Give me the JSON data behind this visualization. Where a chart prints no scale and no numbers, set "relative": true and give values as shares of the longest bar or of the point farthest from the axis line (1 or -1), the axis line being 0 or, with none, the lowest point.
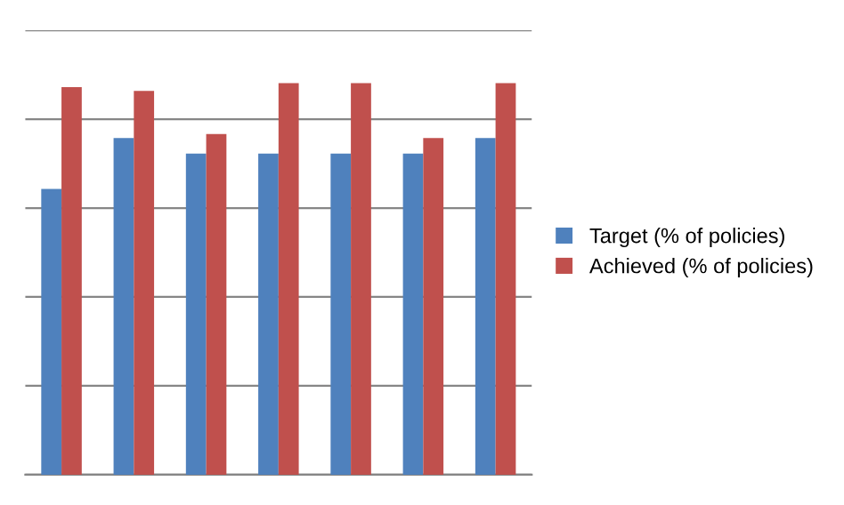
{
  "chart_data": {
    "type": "bar",
    "relative": true,
    "categories": [
      null,
      null,
      null,
      null,
      null,
      null,
      null
    ],
    "series": [
      {
        "name": "Target (% of policies)",
        "color": "#4f81bd",
        "values": [
          0.73,
          0.86,
          0.82,
          0.82,
          0.82,
          0.82,
          0.86
        ]
      },
      {
        "name": "Achieved (% of policies)",
        "color": "#c0504d",
        "values": [
          0.99,
          0.98,
          0.87,
          1,
          1,
          0.86,
          1
        ]
      }
    ],
    "grid": "y",
    "legend": "right"
  }
}
